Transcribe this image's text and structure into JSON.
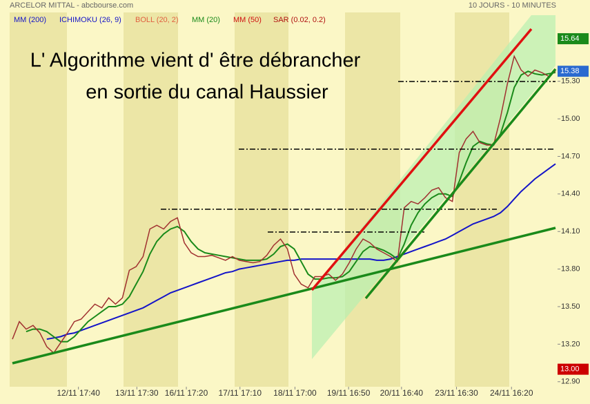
{
  "chart_data": {
    "type": "line",
    "title": "ARCELOR MITTAL - abcbourse.com",
    "subtitle": "10 JOURS - 10 MINUTES",
    "annotation": [
      "L' Algorithme vient d' être débrancher",
      "en sortie du canal Haussier"
    ],
    "color": "#a03030",
    "values": [
      13.24,
      13.38,
      13.32,
      13.35,
      13.29,
      13.18,
      13.13,
      13.21,
      13.29,
      13.38,
      13.4,
      13.46,
      13.52,
      13.49,
      13.57,
      13.52,
      13.57,
      13.79,
      13.82,
      13.9,
      14.12,
      14.15,
      14.12,
      14.18,
      14.21,
      14.01,
      13.93,
      13.9,
      13.9,
      13.91,
      13.89,
      13.87,
      13.9,
      13.87,
      13.86,
      13.85,
      13.86,
      13.91,
      13.99,
      14.04,
      13.96,
      13.76,
      13.68,
      13.65,
      13.74,
      13.74,
      13.76,
      13.71,
      13.76,
      13.85,
      13.96,
      14.04,
      14.01,
      13.96,
      13.93,
      13.9,
      13.86,
      14.29,
      14.34,
      14.32,
      14.37,
      14.43,
      14.45,
      14.37,
      14.34,
      14.73,
      14.84,
      14.9,
      14.81,
      14.79,
      14.79,
      15.01,
      15.28,
      15.5,
      15.39,
      15.34,
      15.39,
      15.37,
      15.34,
      15.38
    ],
    "series": [
      {
        "name": "MM (200)",
        "color": "#1414c8",
        "values": [
          null,
          null,
          null,
          null,
          null,
          13.24,
          13.25,
          13.26,
          13.28,
          13.29,
          13.31,
          13.33,
          13.35,
          13.37,
          13.39,
          13.41,
          13.43,
          13.45,
          13.47,
          13.49,
          13.52,
          13.55,
          13.58,
          13.61,
          13.63,
          13.65,
          13.67,
          13.69,
          13.71,
          13.73,
          13.75,
          13.77,
          13.78,
          13.8,
          13.81,
          13.82,
          13.83,
          13.84,
          13.85,
          13.86,
          13.87,
          13.87,
          13.88,
          13.88,
          13.88,
          13.88,
          13.88,
          13.88,
          13.88,
          13.88,
          13.88,
          13.88,
          13.88,
          13.87,
          13.87,
          13.88,
          13.9,
          13.92,
          13.94,
          13.96,
          13.98,
          14.0,
          14.02,
          14.04,
          14.07,
          14.1,
          14.13,
          14.16,
          14.18,
          14.2,
          14.22,
          14.25,
          14.3,
          14.36,
          14.42,
          14.47,
          14.52,
          14.56,
          14.6,
          14.64
        ]
      },
      {
        "name": "MM (20)",
        "color": "#1a8a1a",
        "values": [
          null,
          null,
          13.3,
          13.32,
          13.32,
          13.3,
          13.26,
          13.22,
          13.22,
          13.26,
          13.32,
          13.38,
          13.42,
          13.46,
          13.5,
          13.5,
          13.52,
          13.58,
          13.68,
          13.78,
          13.92,
          14.02,
          14.08,
          14.12,
          14.14,
          14.1,
          14.02,
          13.96,
          13.93,
          13.92,
          13.91,
          13.9,
          13.89,
          13.88,
          13.87,
          13.87,
          13.87,
          13.88,
          13.92,
          13.98,
          14.0,
          13.96,
          13.86,
          13.76,
          13.72,
          13.72,
          13.73,
          13.73,
          13.74,
          13.78,
          13.86,
          13.94,
          13.98,
          13.97,
          13.95,
          13.92,
          13.88,
          14.0,
          14.15,
          14.25,
          14.32,
          14.37,
          14.4,
          14.4,
          14.38,
          14.5,
          14.65,
          14.78,
          14.82,
          14.8,
          14.79,
          14.88,
          15.05,
          15.25,
          15.35,
          15.38,
          15.36,
          15.35,
          15.36,
          15.37
        ]
      }
    ],
    "legend_items": [
      {
        "name": "ICHIMOKU (26, 9)",
        "color": "#1414c8"
      },
      {
        "name": "BOLL (20, 2)",
        "color": "#e06040"
      },
      {
        "name": "MM (50)",
        "color": "#d01010"
      },
      {
        "name": "SAR (0.02, 0.2)",
        "color": "#b01010"
      }
    ],
    "ylim": [
      12.86,
      15.85
    ],
    "yticks": [
      {
        "value": 12.9,
        "label": "12.90"
      },
      {
        "value": 13.2,
        "label": "13.20"
      },
      {
        "value": 13.5,
        "label": "13.50"
      },
      {
        "value": 13.8,
        "label": "13.80"
      },
      {
        "value": 14.1,
        "label": "14.10"
      },
      {
        "value": 14.4,
        "label": "14.40"
      },
      {
        "value": 14.7,
        "label": "14.70"
      },
      {
        "value": 15.0,
        "label": "15.00"
      },
      {
        "value": 15.3,
        "label": "15.30"
      }
    ],
    "xticks": [
      {
        "value": 9.6,
        "label": "12/11 17:40"
      },
      {
        "value": 18.1,
        "label": "13/11 17:30"
      },
      {
        "value": 25.3,
        "label": "16/11 17:20"
      },
      {
        "value": 33.1,
        "label": "17/11 17:10"
      },
      {
        "value": 41.1,
        "label": "18/11 17:00"
      },
      {
        "value": 48.9,
        "label": "19/11 16:50"
      },
      {
        "value": 56.6,
        "label": "20/11 16:40"
      },
      {
        "value": 64.6,
        "label": "23/11 16:30"
      },
      {
        "value": 72.6,
        "label": "24/11 16:20"
      }
    ],
    "price_markers": [
      {
        "value": 15.64,
        "label": "15.64",
        "color": "#1a8a1a"
      },
      {
        "value": 15.38,
        "label": "15.38",
        "color": "#2a6ad0"
      },
      {
        "value": 13.0,
        "label": "13.00",
        "color": "#cc0000"
      }
    ]
  }
}
